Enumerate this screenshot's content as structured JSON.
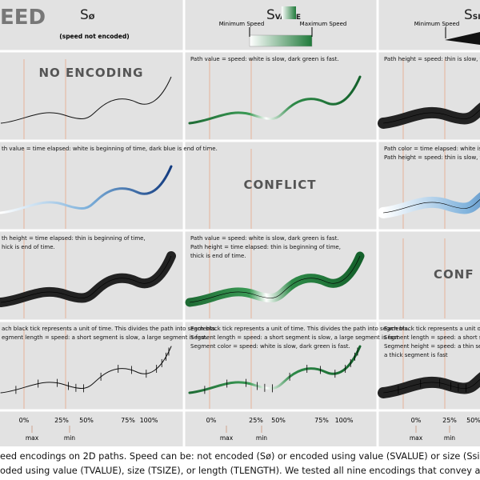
{
  "header": {
    "title": "EED",
    "columns": [
      {
        "symbol": "S",
        "subscript": "Ø",
        "note": "(speed not encoded)"
      },
      {
        "symbol": "S",
        "subscript": "VALUE",
        "min": "Minimum Speed",
        "max": "Maximum Speed"
      },
      {
        "symbol": "S",
        "subscript": "SIZE",
        "min": "Minimum Speed"
      }
    ]
  },
  "cells": [
    [
      {
        "label": "NO ENCODING"
      },
      {
        "lines": [
          "Path value = speed: white is slow, dark green is fast."
        ]
      },
      {
        "lines": [
          "Path height = speed: thin is slow, thick is"
        ]
      }
    ],
    [
      {
        "lines": [
          "th value = time elapsed: white is beginning of time, dark blue is end of time."
        ]
      },
      {
        "label": "CONFLICT"
      },
      {
        "lines": [
          "Path color = time elapsed: white is begin",
          "Path height = speed: thin is slow, thick is"
        ]
      }
    ],
    [
      {
        "lines": [
          "th height = time elapsed: thin is beginning of time,",
          "hick is end of time."
        ]
      },
      {
        "lines": [
          "Path value = speed: white is slow, dark green is fast.",
          "Path height = time elapsed: thin is beginning of time,",
          "thick is end of time."
        ]
      },
      {
        "label": "CONF"
      }
    ],
    [
      {
        "lines": [
          "ach black tick represents a unit of time. This divides the path into segments.",
          "egment length = speed: a short segment is slow, a large segment is fast."
        ]
      },
      {
        "lines": [
          "Each black tick represents a unit of time. This divides the path into segments.",
          "Segment length = speed: a short segment is slow, a large segment is fast.",
          "Segment color = speed: white is slow, dark green is fast."
        ]
      },
      {
        "lines": [
          "Each black tick represents a unit of time. T",
          "Segment length = speed: a short segment",
          "Segment height = speed: a thin segment",
          "a thick segment is fast"
        ]
      }
    ]
  ],
  "axis": {
    "labels": [
      "0%",
      "25%",
      "50%",
      "75%",
      "100%"
    ],
    "markers": [
      "max",
      "min"
    ]
  },
  "caption": [
    "eed encodings on 2D paths. Speed can be: not encoded (Sø) or encoded using value (SVALUE) or size (Ssiz",
    "oded using value (TVALUE), size (TSIZE), or length (TLENGTH). We tested all nine encodings that convey at least on"
  ]
}
